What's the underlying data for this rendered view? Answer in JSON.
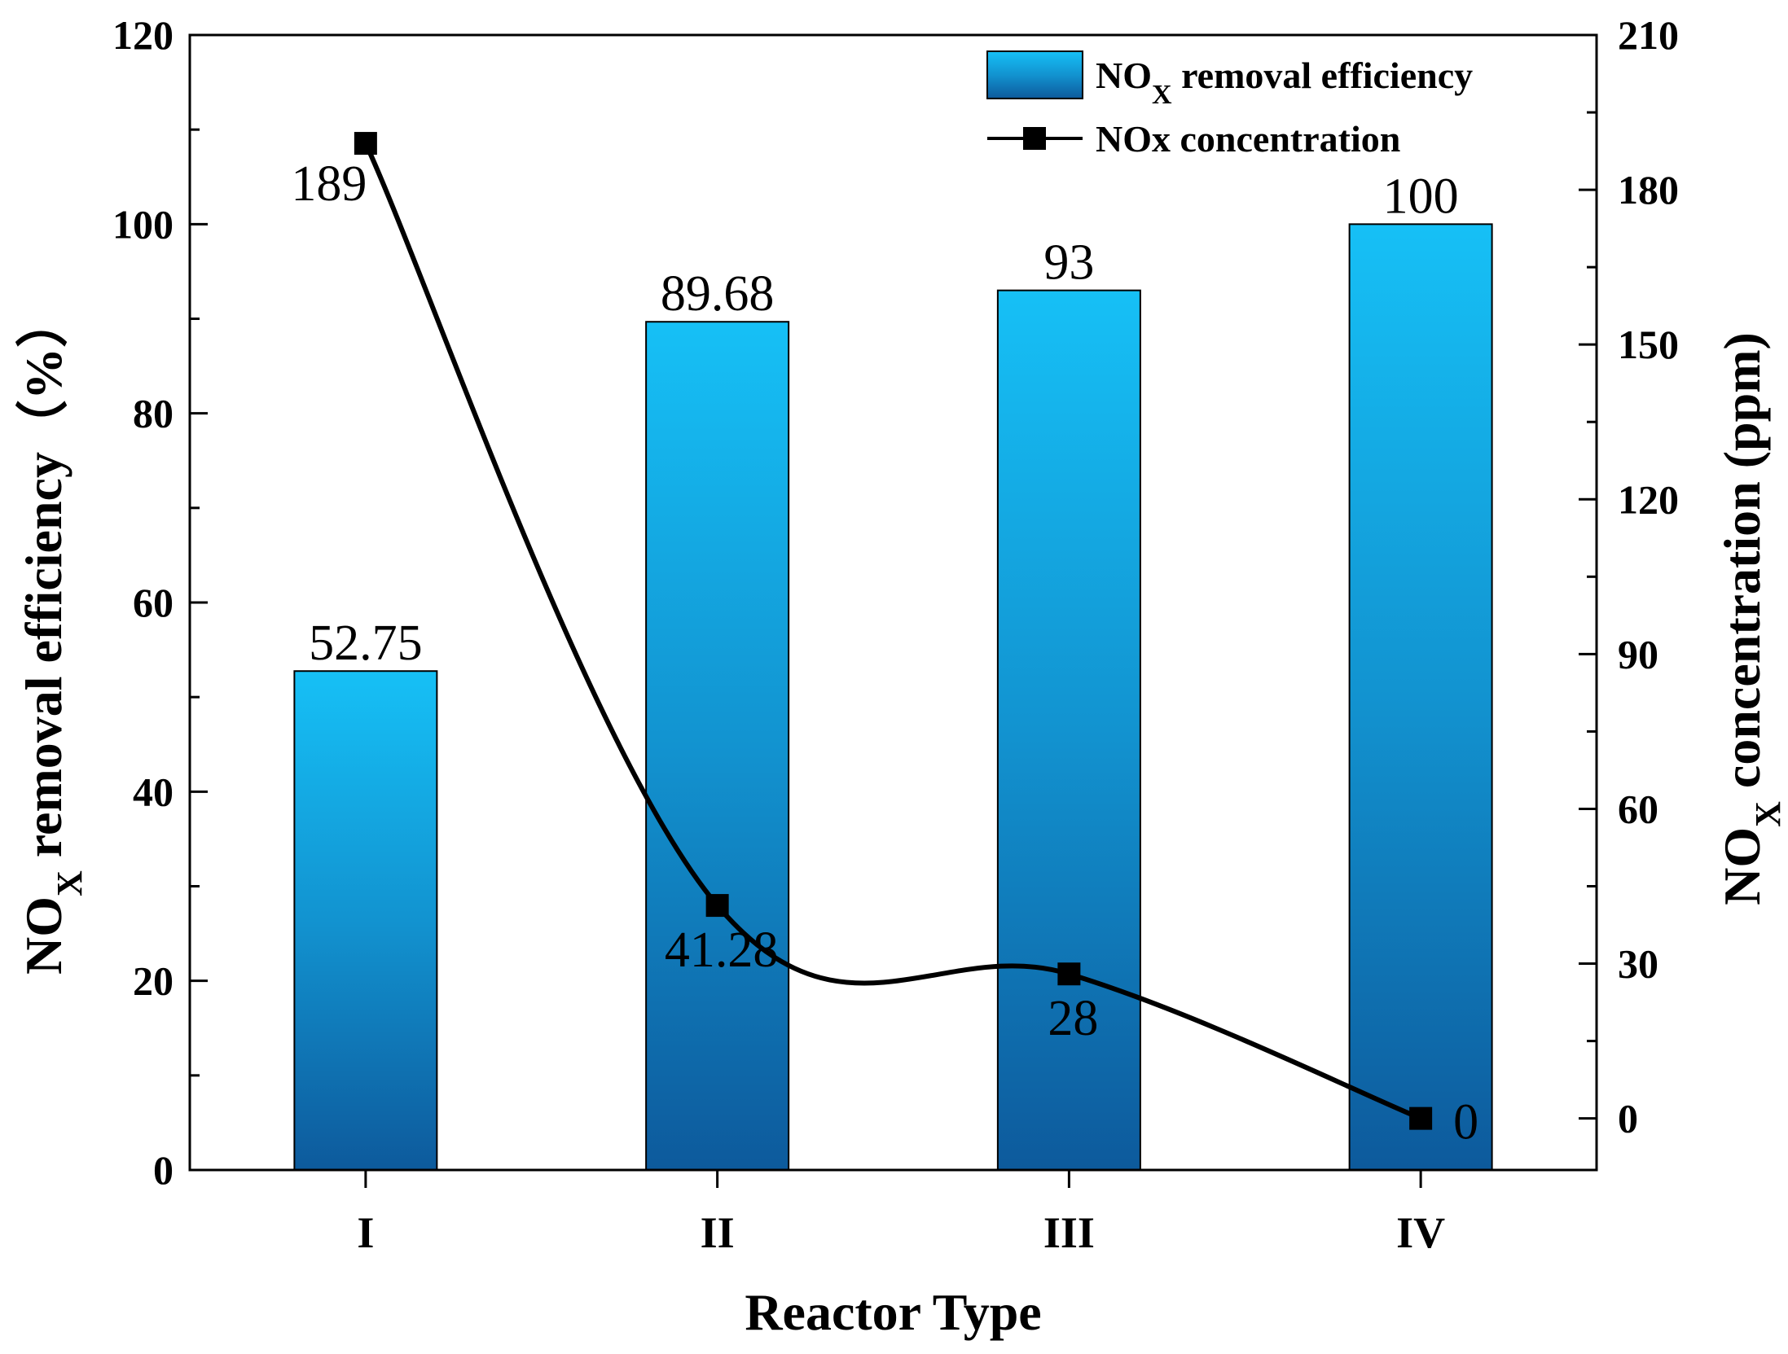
{
  "chart_data": {
    "type": "bar",
    "categories": [
      "I",
      "II",
      "III",
      "IV"
    ],
    "series": [
      {
        "name": "NOX removal efficiency",
        "type": "bar",
        "axis": "left",
        "values": [
          52.75,
          89.68,
          93,
          100
        ],
        "labels": [
          "52.75",
          "89.68",
          "93",
          "100"
        ]
      },
      {
        "name": "NOx concentration",
        "type": "line",
        "axis": "right",
        "values": [
          189,
          41.28,
          28,
          0
        ],
        "labels": [
          "189",
          "41.28",
          "28",
          "0"
        ]
      }
    ],
    "xlabel": "Reactor Type",
    "ylabel": {
      "main": "NO",
      "sub": "X",
      "rest": " removal efficiency（%）"
    },
    "y2label": {
      "main": "NO",
      "sub": "X",
      "rest": " concentration (ppm)"
    },
    "ylim": [
      0,
      120
    ],
    "y2lim": [
      -10,
      210
    ],
    "yticks": [
      0,
      20,
      40,
      60,
      80,
      100,
      120
    ],
    "y2ticks": [
      0,
      30,
      60,
      90,
      120,
      150,
      180,
      210
    ],
    "legend": [
      {
        "main": "NO",
        "sub": "X",
        "rest": " removal efficiency"
      },
      {
        "main": "NOx concentration",
        "sub": "",
        "rest": ""
      }
    ],
    "colors": {
      "bar_top": "#16c0f6",
      "bar_bottom": "#0d5a9c",
      "line": "#000000",
      "axis": "#000000"
    }
  }
}
